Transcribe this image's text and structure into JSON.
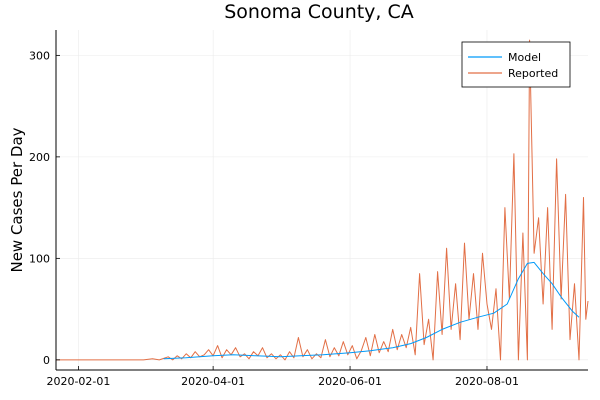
{
  "chart_data": {
    "type": "line",
    "title": "Sonoma County, CA",
    "xlabel": "",
    "ylabel": "New Cases Per Day",
    "x_axis": "date",
    "xlim": [
      "2020-01-22",
      "2020-09-15"
    ],
    "ylim": [
      -10,
      325
    ],
    "x_ticks": [
      "2020-02-01",
      "2020-04-01",
      "2020-06-01",
      "2020-08-01"
    ],
    "y_ticks": [
      0,
      100,
      200,
      300
    ],
    "grid": true,
    "legend": "top-right",
    "colors": {
      "Model": "#009af9",
      "Reported": "#e26f46"
    },
    "series": [
      {
        "name": "Model",
        "points": [
          [
            "2020-03-10",
            1
          ],
          [
            "2020-03-20",
            2
          ],
          [
            "2020-04-01",
            4
          ],
          [
            "2020-04-10",
            5
          ],
          [
            "2020-04-20",
            4
          ],
          [
            "2020-05-01",
            3
          ],
          [
            "2020-05-10",
            4
          ],
          [
            "2020-05-20",
            5
          ],
          [
            "2020-06-01",
            7
          ],
          [
            "2020-06-10",
            9
          ],
          [
            "2020-06-20",
            12
          ],
          [
            "2020-06-28",
            16
          ],
          [
            "2020-07-05",
            22
          ],
          [
            "2020-07-12",
            30
          ],
          [
            "2020-07-20",
            37
          ],
          [
            "2020-07-28",
            42
          ],
          [
            "2020-08-04",
            46
          ],
          [
            "2020-08-10",
            55
          ],
          [
            "2020-08-15",
            80
          ],
          [
            "2020-08-19",
            95
          ],
          [
            "2020-08-22",
            96
          ],
          [
            "2020-08-26",
            85
          ],
          [
            "2020-08-30",
            75
          ],
          [
            "2020-09-03",
            62
          ],
          [
            "2020-09-08",
            48
          ],
          [
            "2020-09-11",
            42
          ]
        ]
      },
      {
        "name": "Reported",
        "points": [
          [
            "2020-01-22",
            0
          ],
          [
            "2020-02-01",
            0
          ],
          [
            "2020-02-15",
            0
          ],
          [
            "2020-03-01",
            0
          ],
          [
            "2020-03-05",
            1
          ],
          [
            "2020-03-08",
            0
          ],
          [
            "2020-03-12",
            3
          ],
          [
            "2020-03-14",
            0
          ],
          [
            "2020-03-16",
            4
          ],
          [
            "2020-03-18",
            1
          ],
          [
            "2020-03-20",
            6
          ],
          [
            "2020-03-22",
            2
          ],
          [
            "2020-03-24",
            8
          ],
          [
            "2020-03-26",
            3
          ],
          [
            "2020-03-28",
            5
          ],
          [
            "2020-03-30",
            10
          ],
          [
            "2020-04-01",
            4
          ],
          [
            "2020-04-03",
            14
          ],
          [
            "2020-04-05",
            2
          ],
          [
            "2020-04-07",
            10
          ],
          [
            "2020-04-09",
            5
          ],
          [
            "2020-04-11",
            12
          ],
          [
            "2020-04-13",
            3
          ],
          [
            "2020-04-15",
            6
          ],
          [
            "2020-04-17",
            1
          ],
          [
            "2020-04-19",
            8
          ],
          [
            "2020-04-21",
            4
          ],
          [
            "2020-04-23",
            12
          ],
          [
            "2020-04-25",
            2
          ],
          [
            "2020-04-27",
            6
          ],
          [
            "2020-04-29",
            1
          ],
          [
            "2020-05-01",
            5
          ],
          [
            "2020-05-03",
            0
          ],
          [
            "2020-05-05",
            8
          ],
          [
            "2020-05-07",
            2
          ],
          [
            "2020-05-09",
            22
          ],
          [
            "2020-05-11",
            3
          ],
          [
            "2020-05-13",
            10
          ],
          [
            "2020-05-15",
            1
          ],
          [
            "2020-05-17",
            6
          ],
          [
            "2020-05-19",
            2
          ],
          [
            "2020-05-21",
            20
          ],
          [
            "2020-05-23",
            3
          ],
          [
            "2020-05-25",
            12
          ],
          [
            "2020-05-27",
            4
          ],
          [
            "2020-05-29",
            18
          ],
          [
            "2020-05-31",
            5
          ],
          [
            "2020-06-02",
            14
          ],
          [
            "2020-06-04",
            1
          ],
          [
            "2020-06-06",
            9
          ],
          [
            "2020-06-08",
            22
          ],
          [
            "2020-06-10",
            4
          ],
          [
            "2020-06-12",
            25
          ],
          [
            "2020-06-14",
            7
          ],
          [
            "2020-06-16",
            18
          ],
          [
            "2020-06-18",
            8
          ],
          [
            "2020-06-20",
            30
          ],
          [
            "2020-06-22",
            10
          ],
          [
            "2020-06-24",
            25
          ],
          [
            "2020-06-26",
            12
          ],
          [
            "2020-06-28",
            32
          ],
          [
            "2020-06-30",
            5
          ],
          [
            "2020-07-02",
            85
          ],
          [
            "2020-07-04",
            15
          ],
          [
            "2020-07-06",
            40
          ],
          [
            "2020-07-08",
            0
          ],
          [
            "2020-07-10",
            87
          ],
          [
            "2020-07-12",
            25
          ],
          [
            "2020-07-14",
            110
          ],
          [
            "2020-07-16",
            30
          ],
          [
            "2020-07-18",
            75
          ],
          [
            "2020-07-20",
            20
          ],
          [
            "2020-07-22",
            115
          ],
          [
            "2020-07-24",
            40
          ],
          [
            "2020-07-26",
            85
          ],
          [
            "2020-07-28",
            30
          ],
          [
            "2020-07-30",
            105
          ],
          [
            "2020-08-01",
            55
          ],
          [
            "2020-08-03",
            30
          ],
          [
            "2020-08-05",
            70
          ],
          [
            "2020-08-07",
            0
          ],
          [
            "2020-08-09",
            150
          ],
          [
            "2020-08-11",
            60
          ],
          [
            "2020-08-13",
            203
          ],
          [
            "2020-08-15",
            0
          ],
          [
            "2020-08-17",
            125
          ],
          [
            "2020-08-19",
            0
          ],
          [
            "2020-08-20",
            315
          ],
          [
            "2020-08-22",
            105
          ],
          [
            "2020-08-24",
            140
          ],
          [
            "2020-08-26",
            55
          ],
          [
            "2020-08-28",
            150
          ],
          [
            "2020-08-30",
            30
          ],
          [
            "2020-09-01",
            198
          ],
          [
            "2020-09-03",
            60
          ],
          [
            "2020-09-05",
            163
          ],
          [
            "2020-09-07",
            20
          ],
          [
            "2020-09-09",
            75
          ],
          [
            "2020-09-11",
            0
          ],
          [
            "2020-09-13",
            160
          ],
          [
            "2020-09-14",
            40
          ],
          [
            "2020-09-15",
            58
          ]
        ]
      }
    ]
  }
}
